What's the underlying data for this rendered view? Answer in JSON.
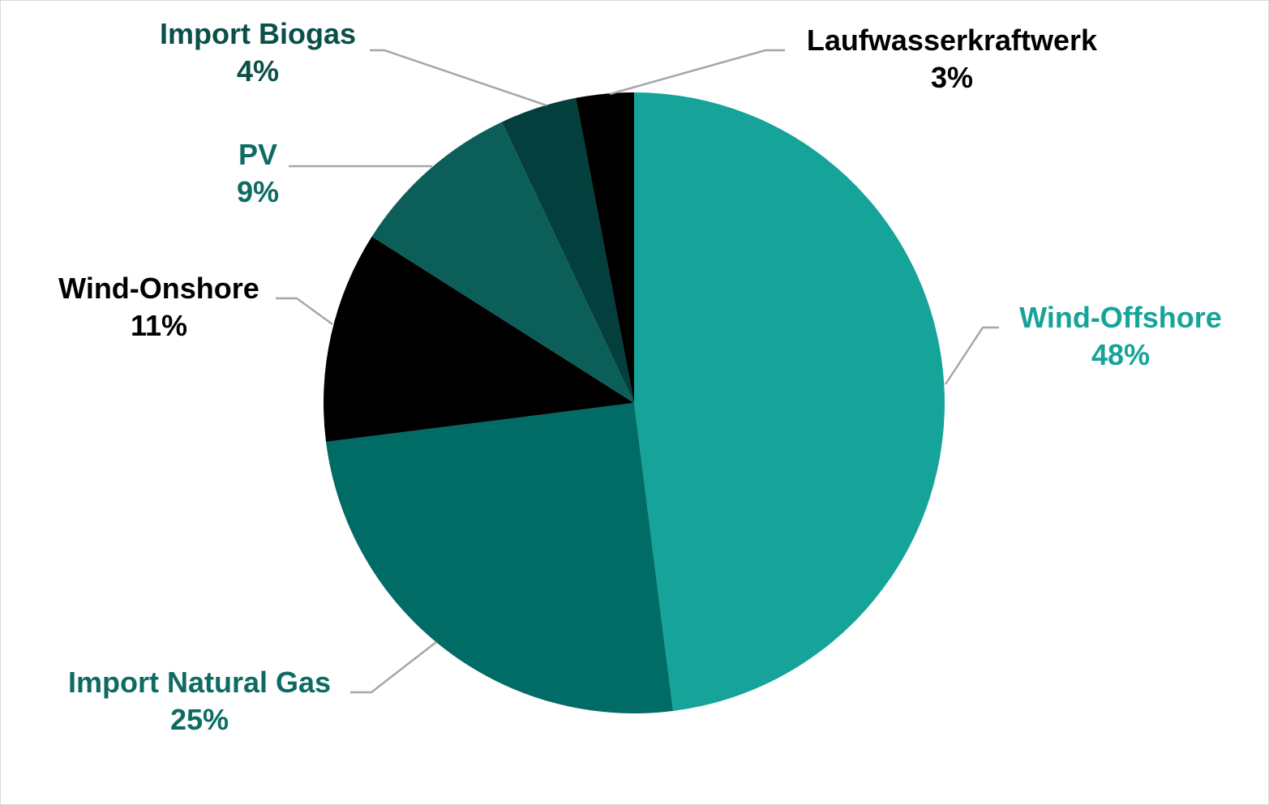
{
  "chart_data": {
    "type": "pie",
    "start_angle_deg": 0,
    "direction": "clockwise",
    "slices": [
      {
        "label": "Wind-Offshore",
        "value": 48,
        "value_label": "48%",
        "color": "#15a39a",
        "label_color": "#15a39a"
      },
      {
        "label": "Import Natural Gas",
        "value": 25,
        "value_label": "25%",
        "color": "#016b65",
        "label_color": "#0d6b63"
      },
      {
        "label": "Wind-Onshore",
        "value": 11,
        "value_label": "11%",
        "color": "#000000",
        "label_color": "#000000"
      },
      {
        "label": "PV",
        "value": 9,
        "value_label": "9%",
        "color": "#0c5f59",
        "label_color": "#0d6b63"
      },
      {
        "label": "Import Biogas",
        "value": 4,
        "value_label": "4%",
        "color": "#033f3c",
        "label_color": "#0b4f49"
      },
      {
        "label": "Laufwasserkraftwerk",
        "value": 3,
        "value_label": "3%",
        "color": "#000000",
        "label_color": "#000000"
      }
    ],
    "leader_line_color": "#a6a6a6"
  }
}
